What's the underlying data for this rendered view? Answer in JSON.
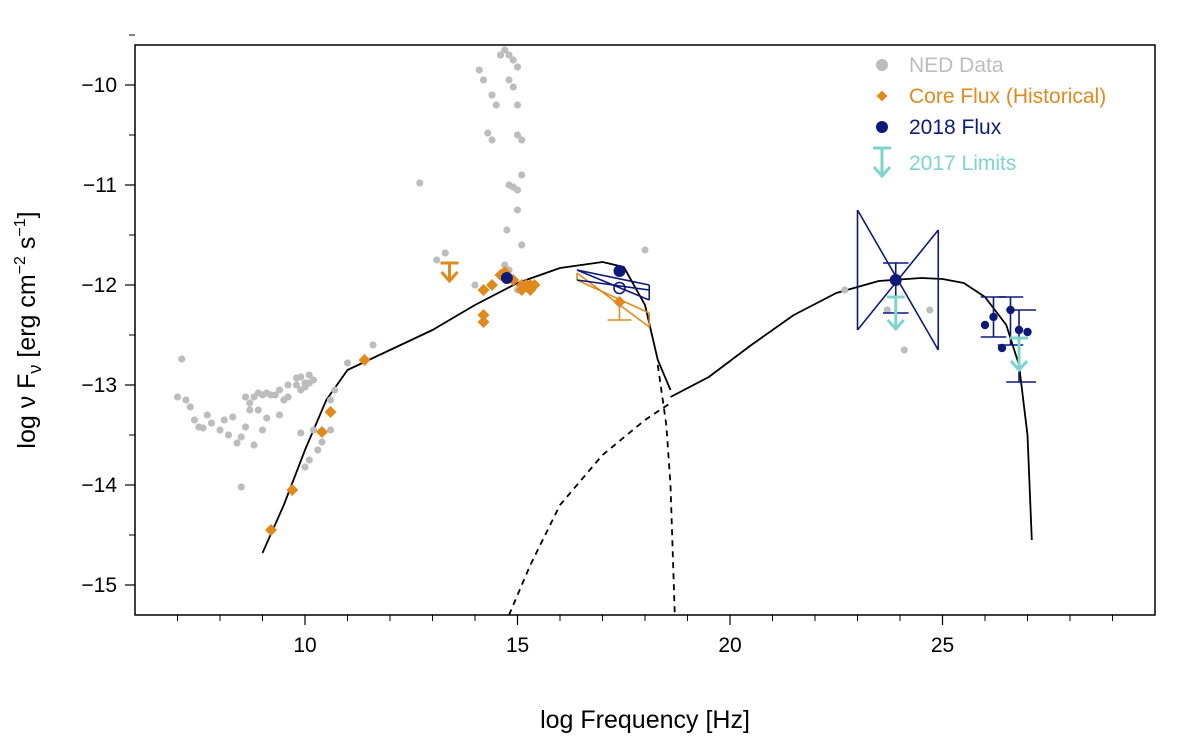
{
  "chart_data": {
    "type": "scatter",
    "title": "",
    "xlabel": "log Frequency [Hz]",
    "ylabel": {
      "main": "log  ν F",
      "sub": "ν",
      "unit_open": " [erg cm",
      "unit_exp1": "−2",
      "unit_mid": "  s",
      "unit_exp2": "−1",
      "unit_close": "]"
    },
    "xlim": [
      6.0,
      30.0
    ],
    "ylim": [
      -15.3,
      -9.6
    ],
    "grid": false,
    "legend_position": "top-right",
    "x_ticks": [
      {
        "value": 10,
        "label": "10"
      },
      {
        "value": 15,
        "label": "15"
      },
      {
        "value": 20,
        "label": "20"
      },
      {
        "value": 25,
        "label": "25"
      }
    ],
    "x_minor_ticks": [
      7,
      8,
      9,
      11,
      12,
      13,
      14,
      16,
      17,
      18,
      19,
      21,
      22,
      23,
      24,
      26,
      27,
      28,
      29
    ],
    "y_ticks": [
      {
        "value": -10,
        "label": "−10"
      },
      {
        "value": -11,
        "label": "−11"
      },
      {
        "value": -12,
        "label": "−12"
      },
      {
        "value": -13,
        "label": "−13"
      },
      {
        "value": -14,
        "label": "−14"
      },
      {
        "value": -15,
        "label": "−15"
      }
    ],
    "y_minor_ticks": [
      -9.5,
      -10.5,
      -11.5,
      -12.5,
      -13.5,
      -14.5
    ],
    "colors": {
      "ned": "#bdbdbd",
      "core": "#e08a1e",
      "flux2018": "#0d1a7a",
      "limits2017": "#7fd4cc",
      "model": "#000000"
    },
    "legend": [
      {
        "label": "NED Data",
        "key": "ned",
        "marker": "circle"
      },
      {
        "label": "Core Flux (Historical)",
        "key": "core",
        "marker": "diamond"
      },
      {
        "label": "2018 Flux",
        "key": "flux2018",
        "marker": "circle"
      },
      {
        "label": "2017 Limits",
        "key": "limits2017",
        "marker": "arrow"
      }
    ],
    "series": [
      {
        "name": "NED Data",
        "key": "ned",
        "points": [
          [
            7.0,
            -13.12
          ],
          [
            7.1,
            -12.74
          ],
          [
            7.2,
            -13.15
          ],
          [
            7.3,
            -13.22
          ],
          [
            7.4,
            -13.35
          ],
          [
            7.5,
            -13.42
          ],
          [
            7.6,
            -13.43
          ],
          [
            7.7,
            -13.3
          ],
          [
            7.8,
            -13.38
          ],
          [
            8.0,
            -13.45
          ],
          [
            8.1,
            -13.35
          ],
          [
            8.2,
            -13.5
          ],
          [
            8.3,
            -13.32
          ],
          [
            8.4,
            -13.58
          ],
          [
            8.5,
            -13.52
          ],
          [
            8.6,
            -13.42
          ],
          [
            8.7,
            -13.25
          ],
          [
            8.8,
            -13.6
          ],
          [
            8.9,
            -13.25
          ],
          [
            9.0,
            -13.45
          ],
          [
            9.1,
            -13.33
          ],
          [
            8.5,
            -14.02
          ],
          [
            8.6,
            -13.12
          ],
          [
            8.7,
            -13.18
          ],
          [
            8.8,
            -13.12
          ],
          [
            8.9,
            -13.08
          ],
          [
            9.0,
            -13.1
          ],
          [
            9.1,
            -13.08
          ],
          [
            9.2,
            -13.1
          ],
          [
            9.3,
            -13.1
          ],
          [
            9.4,
            -13.05
          ],
          [
            9.5,
            -13.15
          ],
          [
            9.6,
            -13.0
          ],
          [
            9.8,
            -13.0
          ],
          [
            9.9,
            -13.05
          ],
          [
            10.0,
            -13.02
          ],
          [
            10.1,
            -12.98
          ],
          [
            10.2,
            -12.95
          ],
          [
            9.6,
            -13.12
          ],
          [
            9.8,
            -12.93
          ],
          [
            9.9,
            -12.92
          ],
          [
            10.0,
            -12.98
          ],
          [
            10.1,
            -12.9
          ],
          [
            9.9,
            -13.48
          ],
          [
            10.0,
            -13.82
          ],
          [
            10.1,
            -13.75
          ],
          [
            10.2,
            -13.45
          ],
          [
            10.3,
            -13.65
          ],
          [
            10.4,
            -13.57
          ],
          [
            10.6,
            -13.45
          ],
          [
            9.4,
            -13.3
          ],
          [
            10.6,
            -13.15
          ],
          [
            10.7,
            -13.05
          ],
          [
            11.0,
            -12.78
          ],
          [
            11.6,
            -12.6
          ],
          [
            12.7,
            -10.98
          ],
          [
            13.1,
            -11.75
          ],
          [
            13.3,
            -11.68
          ],
          [
            14.0,
            -12.0
          ],
          [
            14.2,
            -12.05
          ],
          [
            14.1,
            -9.85
          ],
          [
            14.2,
            -9.95
          ],
          [
            14.3,
            -10.48
          ],
          [
            14.4,
            -10.55
          ],
          [
            14.4,
            -10.1
          ],
          [
            14.5,
            -10.2
          ],
          [
            14.6,
            -9.7
          ],
          [
            14.7,
            -9.65
          ],
          [
            14.8,
            -9.7
          ],
          [
            14.9,
            -9.75
          ],
          [
            14.8,
            -9.95
          ],
          [
            14.9,
            -10.02
          ],
          [
            15.0,
            -9.82
          ],
          [
            15.0,
            -10.5
          ],
          [
            15.0,
            -10.2
          ],
          [
            15.1,
            -10.55
          ],
          [
            15.1,
            -10.9
          ],
          [
            15.0,
            -11.05
          ],
          [
            14.8,
            -11.0
          ],
          [
            14.9,
            -11.02
          ],
          [
            15.0,
            -11.25
          ],
          [
            15.1,
            -11.6
          ],
          [
            14.75,
            -11.45
          ],
          [
            14.7,
            -11.8
          ],
          [
            14.8,
            -11.85
          ],
          [
            15.0,
            -12.05
          ],
          [
            18.0,
            -11.65
          ],
          [
            22.7,
            -12.05
          ],
          [
            23.7,
            -12.25
          ],
          [
            24.1,
            -12.65
          ],
          [
            24.7,
            -12.25
          ]
        ]
      },
      {
        "name": "Core Flux (Historical)",
        "key": "core",
        "points": [
          [
            9.2,
            -14.45
          ],
          [
            9.7,
            -14.05
          ],
          [
            10.4,
            -13.47
          ],
          [
            10.6,
            -13.27
          ],
          [
            11.4,
            -12.75
          ],
          [
            14.2,
            -12.05
          ],
          [
            14.4,
            -12.0
          ],
          [
            14.2,
            -12.3
          ],
          [
            14.2,
            -12.37
          ],
          [
            14.6,
            -11.9
          ],
          [
            14.9,
            -11.95
          ],
          [
            15.1,
            -12.0
          ],
          [
            15.2,
            -12.0
          ],
          [
            15.3,
            -12.0
          ],
          [
            15.4,
            -12.0
          ],
          [
            15.1,
            -12.05
          ],
          [
            15.3,
            -12.05
          ],
          [
            14.7,
            -11.87
          ],
          [
            17.4,
            -12.17
          ]
        ],
        "upper_limits": [
          [
            13.4,
            -11.88
          ]
        ],
        "error_bars": [
          [
            17.4,
            -12.35,
            -12.17
          ]
        ]
      },
      {
        "name": "2018 Flux",
        "key": "flux2018",
        "points": [
          [
            14.75,
            -11.93
          ],
          [
            17.4,
            -11.86
          ],
          [
            23.9,
            -11.95
          ],
          [
            26.0,
            -12.4
          ],
          [
            26.2,
            -12.32
          ],
          [
            26.4,
            -12.63
          ],
          [
            26.6,
            -12.25
          ],
          [
            26.8,
            -12.45
          ],
          [
            27.0,
            -12.47
          ]
        ],
        "open_points": [
          [
            17.4,
            -12.03
          ]
        ],
        "error_bars": [
          {
            "x": 23.9,
            "ylo": -12.28,
            "yhi": -11.78,
            "xlo": 23.6,
            "xhi": 24.2
          },
          {
            "x": 26.2,
            "ylo": -12.52,
            "yhi": -12.12,
            "xlo": 25.9,
            "xhi": 26.5
          },
          {
            "x": 26.6,
            "ylo": -12.6,
            "yhi": -12.12,
            "xlo": 26.3,
            "xhi": 26.9
          },
          {
            "x": 26.8,
            "ylo": -12.97,
            "yhi": -12.25,
            "xlo": 26.5,
            "xhi": 27.2
          }
        ]
      },
      {
        "name": "2017 Limits",
        "key": "limits2017",
        "upper_limits": [
          [
            23.9,
            -12.42
          ],
          [
            26.8,
            -12.83
          ]
        ]
      }
    ],
    "butterflies": [
      {
        "key": "core",
        "lines": [
          [
            [
              16.4,
              -11.88
            ],
            [
              18.1,
              -12.42
            ]
          ],
          [
            [
              16.4,
              -11.95
            ],
            [
              18.1,
              -12.28
            ]
          ],
          [
            [
              16.4,
              -11.88
            ],
            [
              16.4,
              -11.95
            ]
          ],
          [
            [
              18.1,
              -12.28
            ],
            [
              18.1,
              -12.42
            ]
          ]
        ]
      },
      {
        "key": "flux2018",
        "lines": [
          [
            [
              16.4,
              -11.85
            ],
            [
              18.1,
              -12.0
            ]
          ],
          [
            [
              16.4,
              -11.95
            ],
            [
              18.1,
              -12.05
            ]
          ],
          [
            [
              18.1,
              -12.0
            ],
            [
              18.1,
              -12.15
            ]
          ],
          [
            [
              16.4,
              -11.85
            ],
            [
              18.1,
              -12.15
            ]
          ]
        ]
      },
      {
        "key": "flux2018",
        "lines": [
          [
            [
              23.0,
              -11.25
            ],
            [
              24.9,
              -12.65
            ]
          ],
          [
            [
              23.0,
              -12.45
            ],
            [
              24.9,
              -11.45
            ]
          ],
          [
            [
              23.0,
              -11.25
            ],
            [
              23.0,
              -12.45
            ]
          ],
          [
            [
              24.9,
              -11.45
            ],
            [
              24.9,
              -12.65
            ]
          ]
        ]
      }
    ],
    "model_curves": [
      {
        "name": "synchrotron",
        "dash": false,
        "points": [
          [
            9.0,
            -14.68
          ],
          [
            9.5,
            -14.2
          ],
          [
            10.0,
            -13.65
          ],
          [
            10.5,
            -13.15
          ],
          [
            11.0,
            -12.85
          ],
          [
            12.0,
            -12.65
          ],
          [
            13.0,
            -12.45
          ],
          [
            14.0,
            -12.2
          ],
          [
            15.0,
            -11.98
          ],
          [
            16.0,
            -11.83
          ],
          [
            17.0,
            -11.77
          ],
          [
            17.5,
            -11.82
          ],
          [
            18.0,
            -12.2
          ],
          [
            18.3,
            -12.75
          ],
          [
            18.6,
            -13.05
          ]
        ]
      },
      {
        "name": "synchrotron-tail",
        "dash": true,
        "points": [
          [
            18.3,
            -12.8
          ],
          [
            18.5,
            -13.4
          ],
          [
            18.6,
            -14.0
          ],
          [
            18.7,
            -15.3
          ]
        ]
      },
      {
        "name": "inverse-compton",
        "dash": false,
        "points": [
          [
            18.6,
            -13.12
          ],
          [
            19.5,
            -12.92
          ],
          [
            20.5,
            -12.6
          ],
          [
            21.5,
            -12.3
          ],
          [
            22.5,
            -12.08
          ],
          [
            23.5,
            -11.96
          ],
          [
            24.5,
            -11.93
          ],
          [
            25.0,
            -11.94
          ],
          [
            25.5,
            -11.98
          ],
          [
            26.0,
            -12.12
          ],
          [
            26.5,
            -12.4
          ],
          [
            26.8,
            -12.8
          ],
          [
            27.0,
            -13.5
          ],
          [
            27.1,
            -14.55
          ]
        ]
      },
      {
        "name": "inverse-compton-lowE",
        "dash": true,
        "points": [
          [
            14.8,
            -15.3
          ],
          [
            15.3,
            -14.8
          ],
          [
            16.0,
            -14.2
          ],
          [
            17.0,
            -13.7
          ],
          [
            18.0,
            -13.35
          ],
          [
            18.6,
            -13.18
          ]
        ]
      }
    ]
  }
}
